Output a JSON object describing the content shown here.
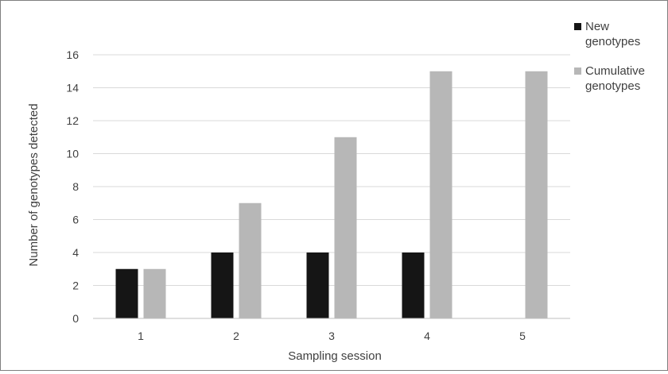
{
  "chart_data": {
    "type": "bar",
    "title": "",
    "xlabel": "Sampling session",
    "ylabel": "Number of genotypes detected",
    "categories": [
      "1",
      "2",
      "3",
      "4",
      "5"
    ],
    "ylim": [
      0,
      16
    ],
    "yticks": [
      0,
      2,
      4,
      6,
      8,
      10,
      12,
      14,
      16
    ],
    "grid": true,
    "legend_position": "top-right",
    "series": [
      {
        "name": "New genotypes",
        "values": [
          3,
          4,
          4,
          4,
          0
        ],
        "color": "#151515"
      },
      {
        "name": "Cumulative genotypes",
        "values": [
          3,
          7,
          11,
          15,
          15
        ],
        "color": "#b7b7b7"
      }
    ]
  },
  "legend": {
    "series1_line1": "New",
    "series1_line2": "genotypes",
    "series2_line1": "Cumulative",
    "series2_line2": "genotypes"
  }
}
